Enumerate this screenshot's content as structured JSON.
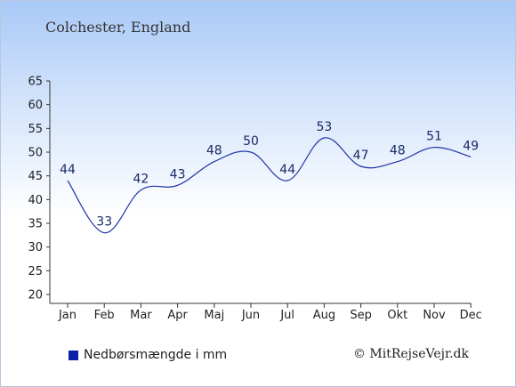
{
  "page": {
    "title": "Colchester, England",
    "credit": "© MitRejseVejr.dk",
    "legend_label": "Nedbørsmængde i mm",
    "legend_color": "#0b1fa8",
    "line_color": "#1f33a8"
  },
  "chart_data": {
    "type": "line",
    "categories": [
      "Jan",
      "Feb",
      "Mar",
      "Apr",
      "Maj",
      "Jun",
      "Jul",
      "Aug",
      "Sep",
      "Okt",
      "Nov",
      "Dec"
    ],
    "series": [
      {
        "name": "Nedbørsmængde i mm",
        "values": [
          44,
          33,
          42,
          43,
          48,
          50,
          44,
          53,
          47,
          48,
          51,
          49
        ]
      }
    ],
    "title": "Colchester, England",
    "xlabel": "",
    "ylabel": "",
    "ylim": [
      20,
      65
    ],
    "yticks": [
      20,
      25,
      30,
      35,
      40,
      45,
      50,
      55,
      60,
      65
    ],
    "grid": false,
    "legend_position": "bottom-left",
    "data_labels": true
  }
}
